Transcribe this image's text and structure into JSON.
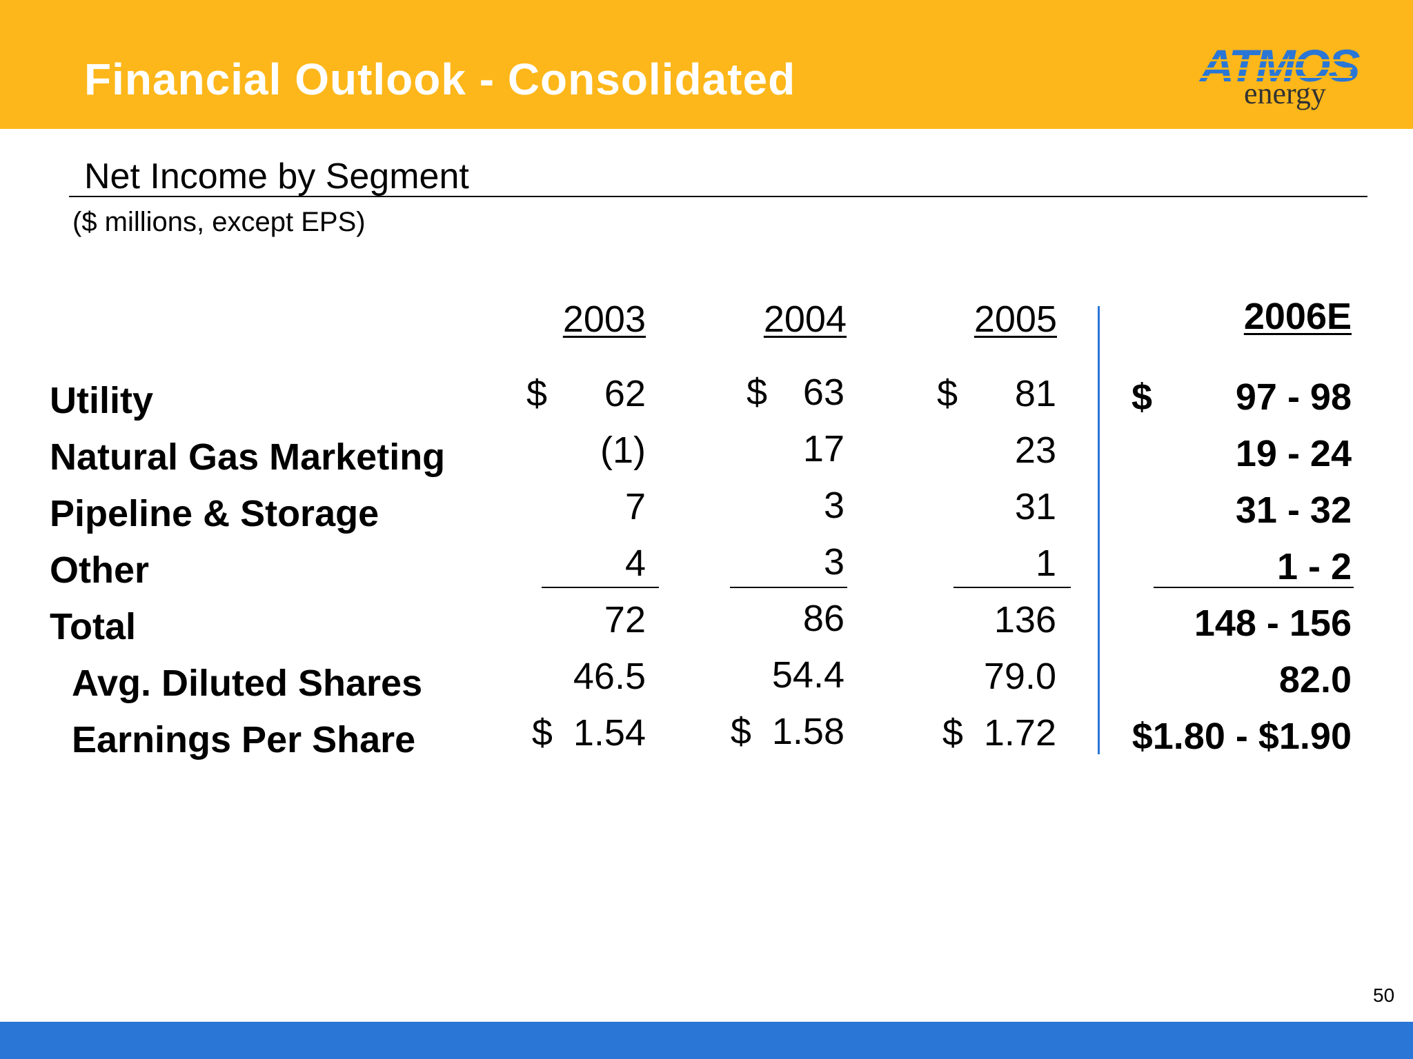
{
  "slide": {
    "title": "Financial Outlook - Consolidated",
    "subtitle": "Net Income by Segment",
    "units": "($ millions, except EPS)",
    "page_number": "50",
    "colors": {
      "header": "#FDB71A",
      "footer": "#2A76D6",
      "divider": "#2A76D6"
    }
  },
  "logo": {
    "brand": "ATMOS",
    "sub": "energy"
  },
  "table": {
    "years": [
      "2003",
      "2004",
      "2005",
      "2006E"
    ],
    "rows": [
      {
        "label": "Utility",
        "values": [
          "62",
          "63",
          "81",
          "97 - 98"
        ],
        "currency": [
          "$",
          "$",
          "$",
          "$"
        ]
      },
      {
        "label": "Natural Gas Marketing",
        "values": [
          "(1)",
          "17",
          "23",
          "19 - 24"
        ]
      },
      {
        "label": "Pipeline & Storage",
        "values": [
          "7",
          "3",
          "31",
          "31 - 32"
        ]
      },
      {
        "label": "Other",
        "values": [
          "4",
          "3",
          "1",
          "1 - 2"
        ]
      },
      {
        "label": "Total",
        "values": [
          "72",
          "86",
          "136",
          "148 - 156"
        ]
      },
      {
        "label": "Avg. Diluted Shares",
        "values": [
          "46.5",
          "54.4",
          "79.0",
          "82.0"
        ]
      },
      {
        "label": "Earnings Per Share",
        "values": [
          "$  1.54",
          "$  1.58",
          "$  1.72",
          "$1.80 - $1.90"
        ]
      }
    ]
  }
}
